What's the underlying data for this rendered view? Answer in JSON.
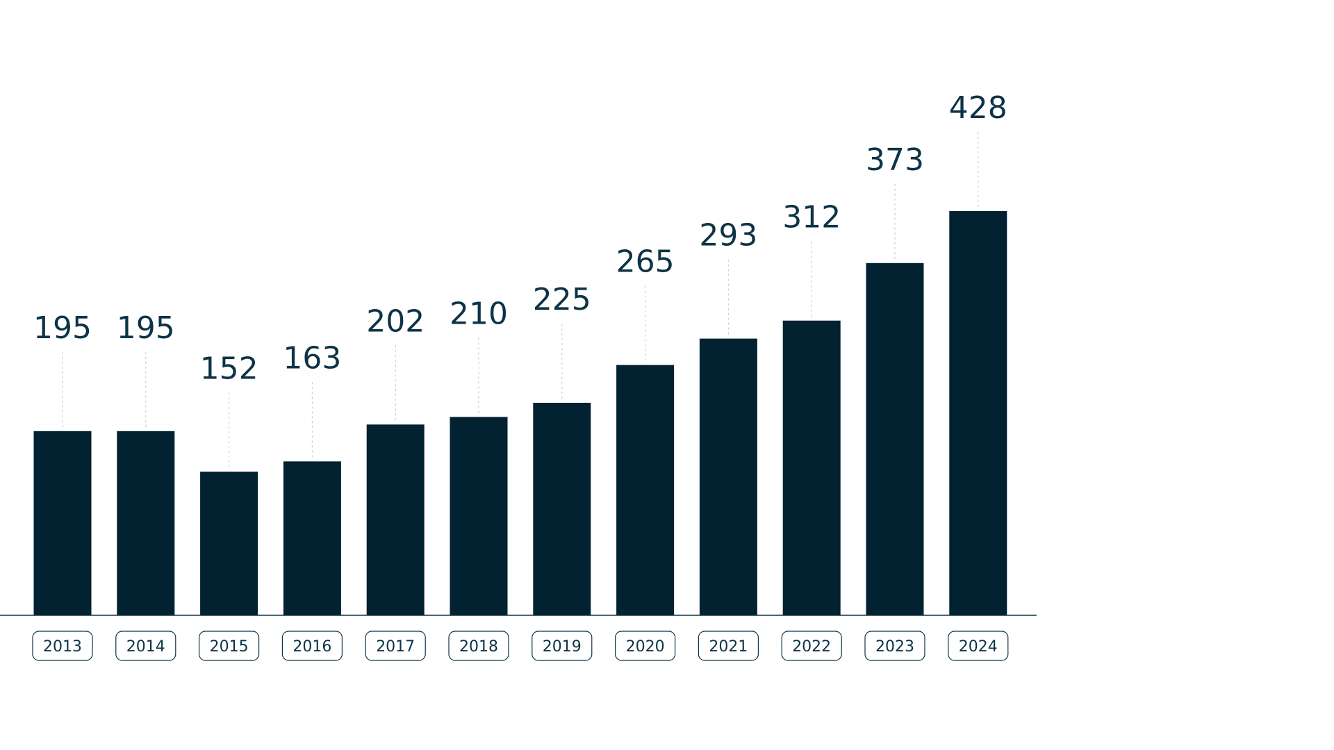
{
  "chart_data": {
    "type": "bar",
    "categories": [
      "2013",
      "2014",
      "2015",
      "2016",
      "2017",
      "2018",
      "2019",
      "2020",
      "2021",
      "2022",
      "2023",
      "2024"
    ],
    "values": [
      195,
      195,
      152,
      163,
      202,
      210,
      225,
      265,
      293,
      312,
      373,
      428
    ],
    "ylim": [
      0,
      428
    ],
    "grid": false,
    "data_labels": true,
    "colors": {
      "bar": "#022131",
      "text": "#0d3346",
      "badge_border": "#0d3346",
      "leader": "#c9cdd0",
      "background": "#ffffff"
    }
  }
}
